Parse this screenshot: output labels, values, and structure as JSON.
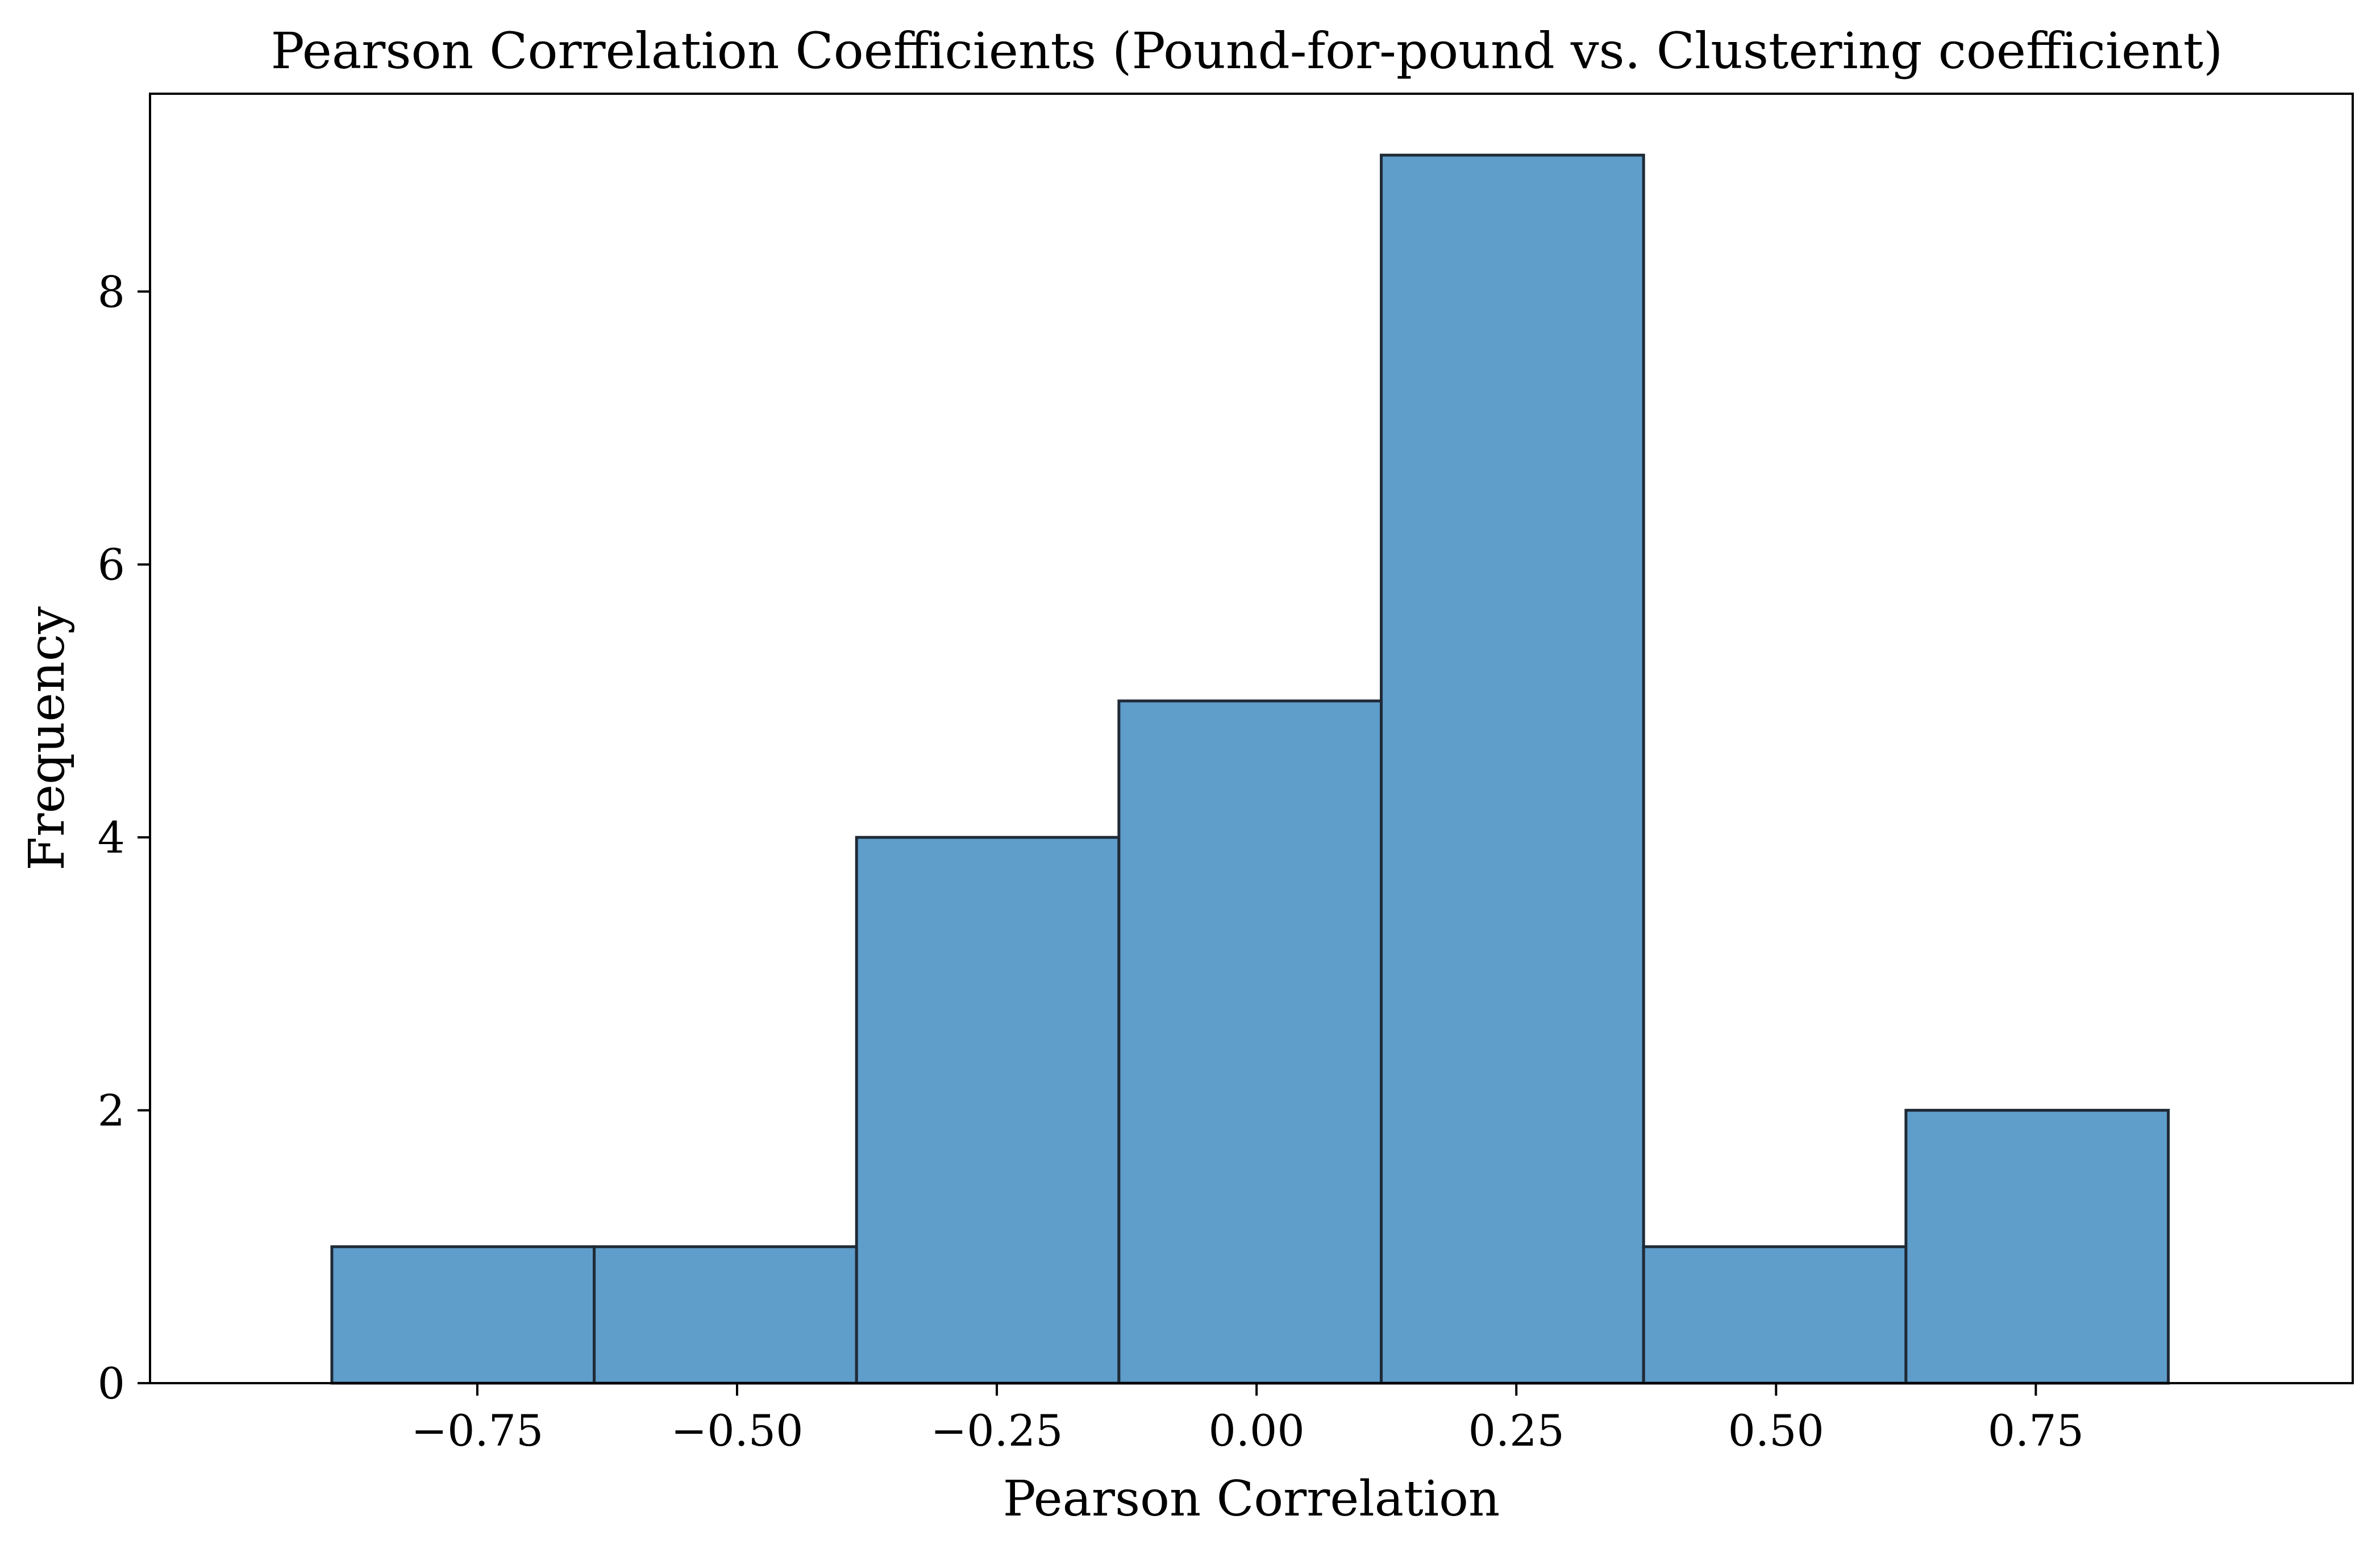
{
  "chart_data": {
    "type": "bar",
    "title": "Pearson Correlation Coefficients (Pound-for-pound vs. Clustering coefficient)",
    "xlabel": "Pearson Correlation",
    "ylabel": "Frequency",
    "bin_edges": [
      -0.89,
      -0.6375,
      -0.385,
      -0.1325,
      0.12,
      0.3725,
      0.625,
      0.8775
    ],
    "values": [
      1,
      1,
      4,
      5,
      9,
      1,
      2
    ],
    "xlim": [
      -1.065,
      1.055
    ],
    "ylim": [
      0,
      9.45
    ],
    "x_ticks": [
      {
        "value": -0.75,
        "label": "−0.75"
      },
      {
        "value": -0.5,
        "label": "−0.50"
      },
      {
        "value": -0.25,
        "label": "−0.25"
      },
      {
        "value": 0.0,
        "label": "0.00"
      },
      {
        "value": 0.25,
        "label": "0.25"
      },
      {
        "value": 0.5,
        "label": "0.50"
      },
      {
        "value": 0.75,
        "label": "0.75"
      }
    ],
    "y_ticks": [
      {
        "value": 0,
        "label": "0"
      },
      {
        "value": 2,
        "label": "2"
      },
      {
        "value": 4,
        "label": "4"
      },
      {
        "value": 6,
        "label": "6"
      },
      {
        "value": 8,
        "label": "8"
      }
    ],
    "grid": false,
    "bar_color": "#5f9dca",
    "edge_color": "#1f2a36"
  }
}
